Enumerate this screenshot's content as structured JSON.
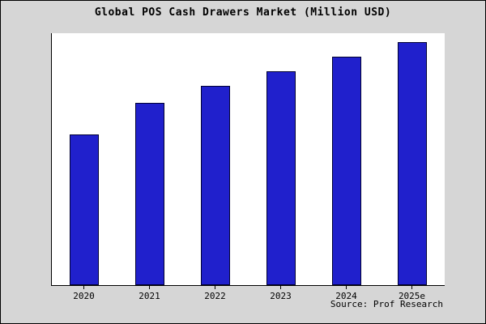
{
  "source": "Source: Prof Research",
  "colors": {
    "bar_fill": "#2020cc",
    "bar_border": "#000033",
    "background": "#d6d6d6",
    "plot_background": "#ffffff",
    "axis": "#000000"
  },
  "chart_data": {
    "type": "bar",
    "title": "Global POS Cash Drawers Market (Million USD)",
    "categories": [
      "2020",
      "2021",
      "2022",
      "2023",
      "2024",
      "2025e"
    ],
    "values": [
      62,
      75,
      82,
      88,
      94,
      100
    ],
    "xlabel": "",
    "ylabel": "",
    "ylim": [
      0,
      104
    ],
    "grid": false,
    "legend": false,
    "y_axis_tick_labels_visible": false,
    "annotation": "Source: Prof Research"
  }
}
